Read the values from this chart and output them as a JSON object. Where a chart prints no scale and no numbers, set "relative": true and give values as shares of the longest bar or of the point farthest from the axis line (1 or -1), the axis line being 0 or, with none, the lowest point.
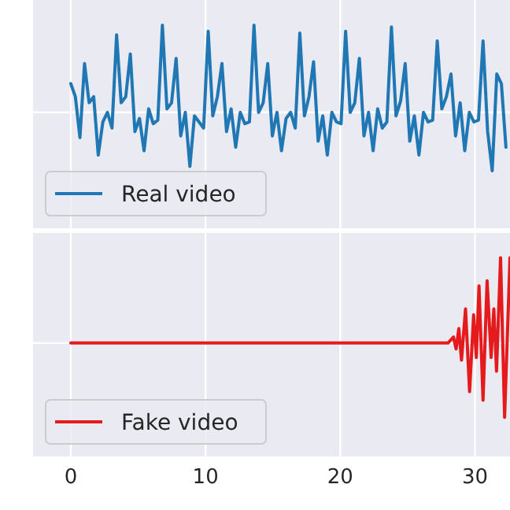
{
  "chart_data": [
    {
      "type": "line",
      "x": [
        0,
        0.34,
        0.68,
        1.02,
        1.36,
        1.7,
        2.04,
        2.38,
        2.72,
        3.06,
        3.4,
        3.74,
        4.08,
        4.42,
        4.76,
        5.1,
        5.44,
        5.78,
        6.12,
        6.46,
        6.8,
        7.14,
        7.48,
        7.82,
        8.16,
        8.5,
        8.84,
        9.18,
        9.52,
        9.86,
        10.2,
        10.54,
        10.88,
        11.22,
        11.56,
        11.9,
        12.24,
        12.58,
        12.92,
        13.26,
        13.6,
        13.94,
        14.28,
        14.62,
        14.96,
        15.3,
        15.64,
        15.98,
        16.32,
        16.66,
        17,
        17.34,
        17.68,
        18.02,
        18.36,
        18.7,
        19.04,
        19.38,
        19.72,
        20.06,
        20.4,
        20.74,
        21.08,
        21.42,
        21.76,
        22.1,
        22.44,
        22.78,
        23.12,
        23.46,
        23.8,
        24.14,
        24.48,
        24.82,
        25.16,
        25.5,
        25.84,
        26.18,
        26.52,
        26.86,
        27.2,
        27.54,
        27.88,
        28.22,
        28.56,
        28.9,
        29.24,
        29.58,
        29.92,
        30.26,
        30.6,
        30.94,
        31.28,
        31.62,
        31.96,
        32.3
      ],
      "series": [
        {
          "name": "Real video",
          "color": "#1f77b4",
          "values": [
            0.33,
            0.18,
            -0.29,
            0.56,
            0.11,
            0.18,
            -0.49,
            -0.11,
            0,
            -0.18,
            0.89,
            0.11,
            0.18,
            0.67,
            -0.22,
            -0.07,
            -0.44,
            0.04,
            -0.13,
            -0.09,
            1,
            0.04,
            0.11,
            0.62,
            -0.27,
            0,
            -0.62,
            -0.04,
            -0.11,
            -0.18,
            0.93,
            -0.04,
            0.18,
            0.56,
            -0.22,
            0.04,
            -0.4,
            0,
            -0.13,
            -0.11,
            1,
            0,
            0.11,
            0.56,
            -0.27,
            0,
            -0.44,
            -0.07,
            0,
            -0.18,
            0.91,
            -0.04,
            0.18,
            0.58,
            -0.33,
            -0.04,
            -0.49,
            0,
            -0.11,
            -0.13,
            0.93,
            0,
            0.11,
            0.62,
            -0.27,
            0,
            -0.44,
            0.04,
            -0.18,
            -0.11,
            0.98,
            -0.04,
            0.13,
            0.56,
            -0.33,
            -0.04,
            -0.49,
            0,
            -0.11,
            -0.09,
            0.82,
            0.04,
            0.18,
            0.44,
            -0.27,
            0.11,
            -0.44,
            0,
            -0.11,
            -0.09,
            0.82,
            -0.22,
            -0.67,
            0.44,
            0.33,
            -0.4
          ]
        }
      ],
      "relative": true,
      "xlim": [
        -2.8,
        32.6
      ],
      "xticks": [
        0,
        10,
        20,
        30
      ],
      "grid": true,
      "legend": "bottom left",
      "tick_labels": false
    },
    {
      "type": "line",
      "series": [
        {
          "name": "Fake video",
          "color": "#e41a1c",
          "x": [
            0,
            28,
            28.4,
            28.6,
            28.8,
            29,
            29.3,
            29.6,
            29.9,
            30.1,
            30.3,
            30.6,
            30.9,
            31.2,
            31.4,
            31.6,
            31.9,
            32.2,
            32.6
          ],
          "values": [
            0,
            0,
            0.07,
            -0.07,
            0.17,
            -0.2,
            0.4,
            -0.57,
            0.33,
            -0.17,
            0.67,
            -0.67,
            0.73,
            -0.17,
            0.4,
            -0.33,
            1,
            -0.87,
            1
          ]
        }
      ],
      "relative": true,
      "xlim": [
        -2.8,
        32.6
      ],
      "xticks": [
        0,
        10,
        20,
        30
      ],
      "grid": true,
      "legend": "bottom left",
      "tick_labels": "x"
    }
  ]
}
